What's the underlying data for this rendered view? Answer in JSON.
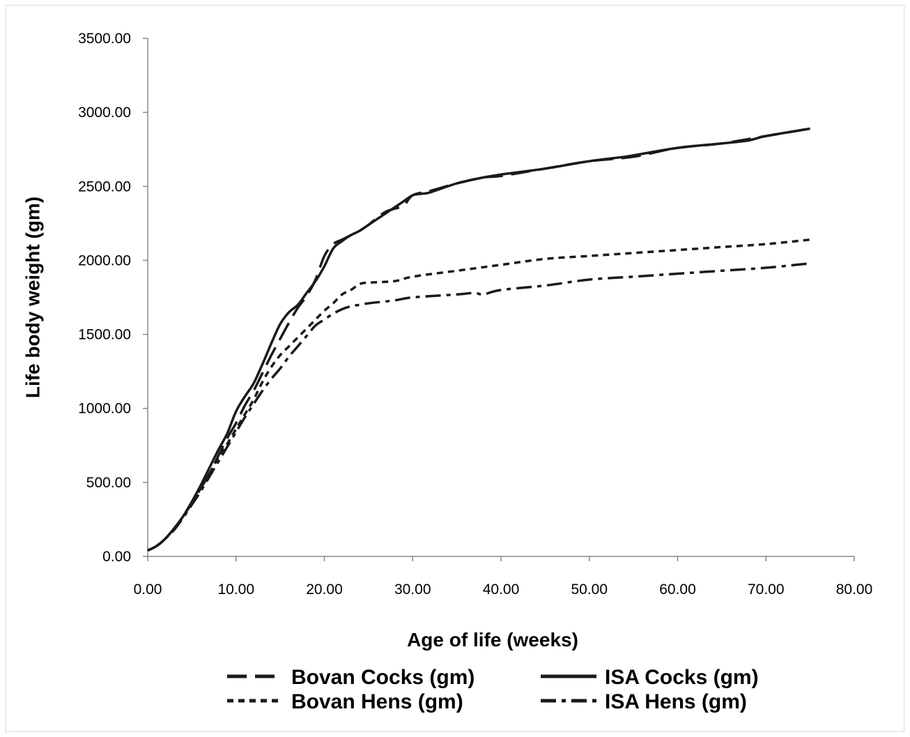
{
  "chart_data": {
    "type": "line",
    "title": "",
    "xlabel": "Age of life (weeks)",
    "ylabel": "Life body weight (gm)",
    "xlim": [
      0,
      80
    ],
    "ylim": [
      0,
      3500
    ],
    "x_ticks": [
      "0.00",
      "10.00",
      "20.00",
      "30.00",
      "40.00",
      "50.00",
      "60.00",
      "70.00",
      "80.00"
    ],
    "y_ticks": [
      "0.00",
      "500.00",
      "1000.00",
      "1500.00",
      "2000.00",
      "2500.00",
      "3000.00",
      "3500.00"
    ],
    "grid": false,
    "legend_position": "bottom",
    "line_color": "#1a1a1a",
    "series": [
      {
        "name": "Bovan Cocks (gm)",
        "style": "long-dash",
        "x": [
          0,
          1,
          2,
          3,
          4,
          5,
          6,
          7,
          8,
          9,
          10,
          11,
          12,
          13,
          14,
          15,
          16,
          17,
          18,
          19,
          20,
          21,
          22,
          23,
          24,
          25,
          26,
          27,
          28,
          29,
          30,
          32,
          35,
          38,
          40,
          45,
          50,
          55,
          60,
          65,
          70,
          75
        ],
        "y": [
          40,
          70,
          120,
          190,
          270,
          360,
          460,
          560,
          680,
          800,
          900,
          1020,
          1120,
          1240,
          1360,
          1470,
          1580,
          1680,
          1760,
          1870,
          2030,
          2110,
          2140,
          2170,
          2200,
          2240,
          2290,
          2330,
          2350,
          2370,
          2440,
          2470,
          2520,
          2560,
          2570,
          2620,
          2670,
          2700,
          2760,
          2790,
          2840,
          2890
        ]
      },
      {
        "name": "Bovan Hens (gm)",
        "style": "short-dash",
        "x": [
          0,
          1,
          2,
          3,
          4,
          5,
          6,
          7,
          8,
          9,
          10,
          11,
          12,
          13,
          14,
          15,
          16,
          17,
          18,
          19,
          20,
          21,
          22,
          23,
          24,
          25,
          28,
          30,
          35,
          40,
          45,
          50,
          55,
          60,
          65,
          70,
          75
        ],
        "y": [
          40,
          70,
          120,
          190,
          270,
          360,
          460,
          560,
          670,
          760,
          860,
          960,
          1060,
          1180,
          1280,
          1360,
          1420,
          1480,
          1540,
          1600,
          1660,
          1710,
          1770,
          1800,
          1840,
          1850,
          1860,
          1890,
          1930,
          1970,
          2010,
          2030,
          2050,
          2070,
          2090,
          2110,
          2140
        ]
      },
      {
        "name": "ISA Cocks (gm)",
        "style": "solid",
        "x": [
          0,
          1,
          2,
          3,
          4,
          5,
          6,
          7,
          8,
          9,
          10,
          11,
          12,
          13,
          14,
          15,
          16,
          17,
          18,
          19,
          20,
          21,
          22,
          23,
          24,
          25,
          26,
          27,
          28,
          29,
          30,
          31,
          32,
          35,
          38,
          40,
          45,
          50,
          54,
          56,
          60,
          65,
          68,
          70,
          75
        ],
        "y": [
          40,
          70,
          120,
          190,
          270,
          370,
          480,
          600,
          720,
          830,
          980,
          1080,
          1170,
          1300,
          1440,
          1570,
          1650,
          1700,
          1780,
          1860,
          1960,
          2080,
          2130,
          2170,
          2200,
          2240,
          2280,
          2320,
          2360,
          2400,
          2440,
          2450,
          2460,
          2520,
          2560,
          2580,
          2620,
          2670,
          2700,
          2720,
          2760,
          2790,
          2810,
          2840,
          2890
        ]
      },
      {
        "name": "ISA Hens (gm)",
        "style": "dash-dot",
        "x": [
          0,
          1,
          2,
          3,
          4,
          5,
          6,
          7,
          8,
          9,
          10,
          11,
          12,
          13,
          14,
          15,
          16,
          17,
          18,
          19,
          20,
          21,
          22,
          23,
          24,
          25,
          28,
          30,
          35,
          37,
          38,
          40,
          45,
          50,
          55,
          60,
          65,
          70,
          75
        ],
        "y": [
          40,
          70,
          120,
          180,
          260,
          350,
          440,
          540,
          640,
          740,
          840,
          940,
          1030,
          1120,
          1200,
          1270,
          1350,
          1420,
          1490,
          1560,
          1600,
          1640,
          1670,
          1690,
          1700,
          1710,
          1730,
          1750,
          1770,
          1780,
          1770,
          1800,
          1830,
          1870,
          1890,
          1910,
          1930,
          1950,
          1980
        ]
      }
    ]
  }
}
